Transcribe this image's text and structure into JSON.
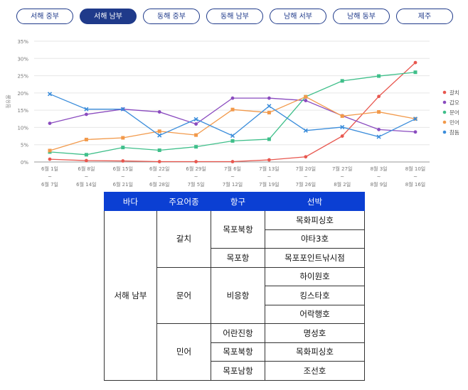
{
  "tabs": [
    "서해 중부",
    "서해 남부",
    "동해 중부",
    "동해 남부",
    "남해 서부",
    "남해 동부",
    "제주"
  ],
  "active_tab": 1,
  "chart_data": {
    "type": "line",
    "ylabel": "점유율",
    "ylim": [
      0,
      35
    ],
    "yticks": [
      "0%",
      "5%",
      "10%",
      "15%",
      "20%",
      "25%",
      "30%",
      "35%"
    ],
    "categories": [
      [
        "6월 1일",
        "~",
        "6월 7일"
      ],
      [
        "6월 8일",
        "~",
        "6월 14일"
      ],
      [
        "6월 15일",
        "~",
        "6월 21일"
      ],
      [
        "6월 22일",
        "~",
        "6월 28일"
      ],
      [
        "6월 29일",
        "~",
        "7월 5일"
      ],
      [
        "7월 6일",
        "~",
        "7월 12일"
      ],
      [
        "7월 13일",
        "~",
        "7월 19일"
      ],
      [
        "7월 20일",
        "~",
        "7월 26일"
      ],
      [
        "7월 27일",
        "~",
        "8월 2일"
      ],
      [
        "8월 3일",
        "~",
        "8월 9일"
      ],
      [
        "8월 10일",
        "~",
        "8월 16일"
      ]
    ],
    "legend_position": "right",
    "grid": true,
    "series": [
      {
        "name": "갈치",
        "color": "#e8574f",
        "marker": "circle",
        "values": [
          0.8,
          0.4,
          0.3,
          0.1,
          0.1,
          0.1,
          0.6,
          1.5,
          7.5,
          19,
          28.8
        ]
      },
      {
        "name": "갑오",
        "color": "#8a4bbf",
        "marker": "circle",
        "values": [
          11.2,
          13.8,
          15.3,
          14.5,
          11,
          18.5,
          18.5,
          17.8,
          13.4,
          9.4,
          8.7
        ]
      },
      {
        "name": "문어",
        "color": "#3fbf8a",
        "marker": "square",
        "values": [
          2.9,
          2.1,
          4.2,
          3.4,
          4.4,
          6.1,
          6.6,
          18.9,
          23.5,
          24.9,
          26
        ]
      },
      {
        "name": "민어",
        "color": "#f2994a",
        "marker": "square",
        "values": [
          3.3,
          6.5,
          7,
          8.9,
          7.8,
          15.2,
          14.3,
          18.9,
          13.3,
          14.5,
          12.5
        ]
      },
      {
        "name": "참돔",
        "color": "#3b8ddb",
        "marker": "x",
        "values": [
          19.7,
          15.3,
          15.3,
          7.7,
          12.4,
          7.6,
          16.2,
          9.1,
          10.1,
          7.3,
          12.5
        ]
      }
    ]
  },
  "table": {
    "headers": [
      "바다",
      "주요어종",
      "항구",
      "선박"
    ],
    "sea": "서해 남부",
    "species": [
      "갈치",
      "문어",
      "민어"
    ],
    "ports": [
      "목포북항",
      "목포항",
      "비응항",
      "어란진항",
      "목포북항",
      "목포남항"
    ],
    "vessels": [
      "목화피싱호",
      "야타3호",
      "목포포인트낚시점",
      "하이원호",
      "킹스타호",
      "어락행호",
      "명성호",
      "목화피싱호",
      "조선호"
    ]
  }
}
